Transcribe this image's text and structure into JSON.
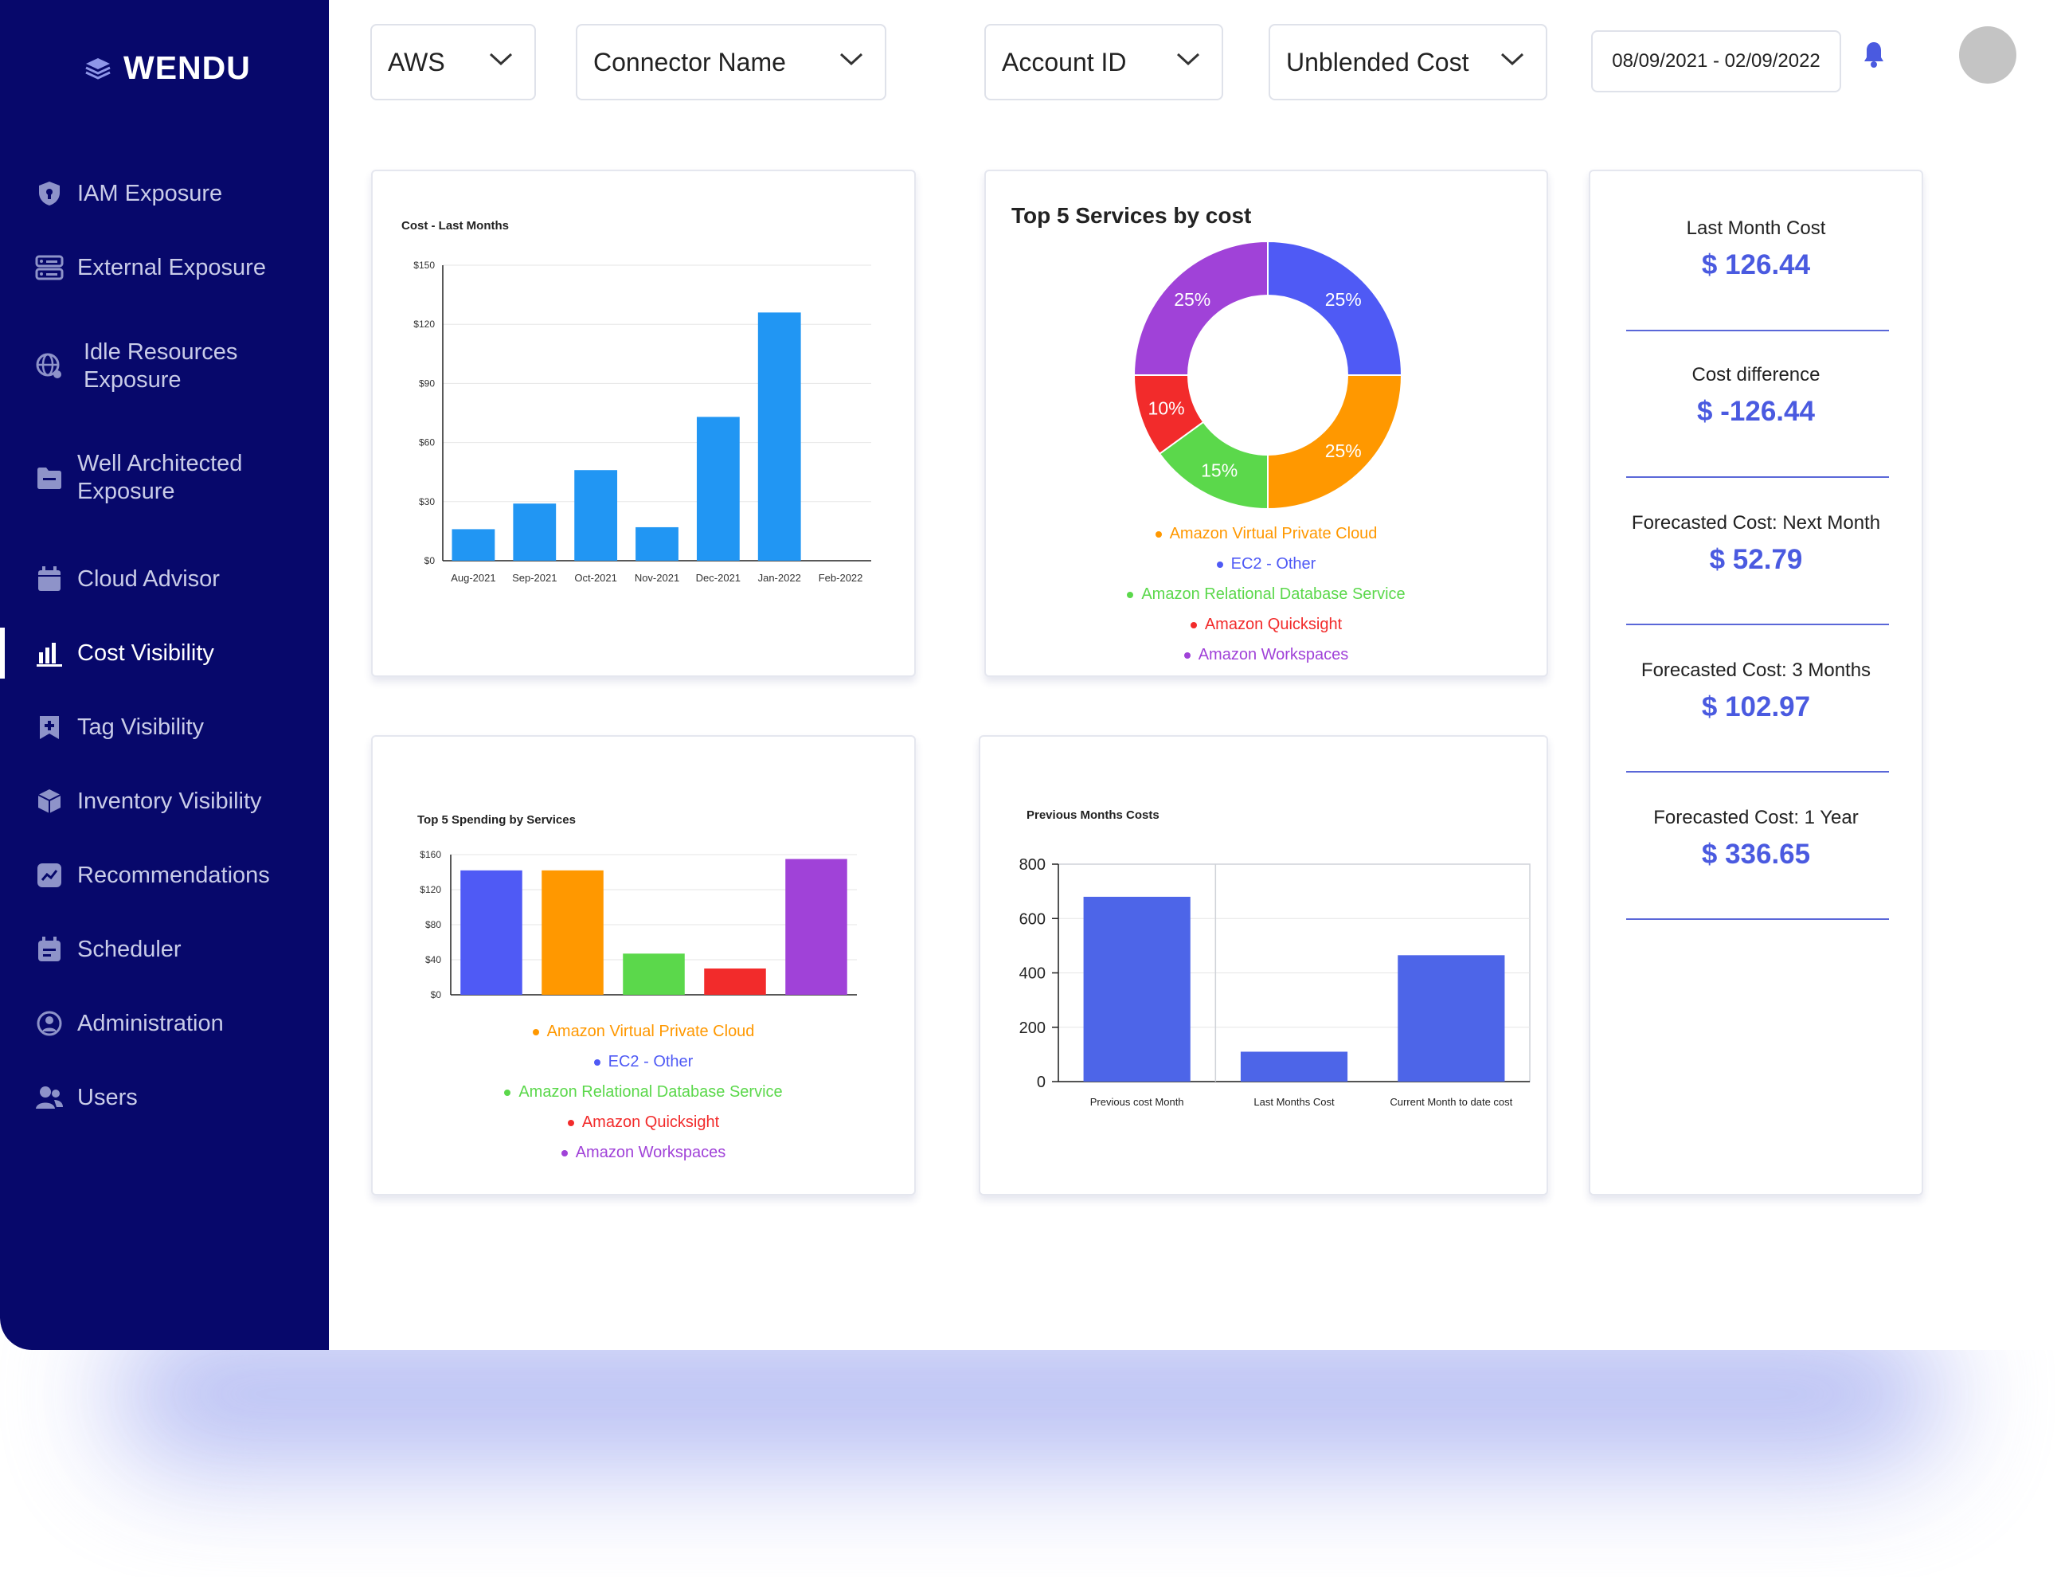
{
  "brand": {
    "name": "WENDU"
  },
  "sidebar": {
    "items": [
      {
        "label": "IAM Exposure",
        "icon": "shield-icon"
      },
      {
        "label": "External Exposure",
        "icon": "server-icon"
      },
      {
        "label": "Idle Resources Exposure",
        "icon": "globe-icon"
      },
      {
        "label": "Well Architected Exposure",
        "icon": "folder-icon"
      },
      {
        "label": "Cloud Advisor",
        "icon": "calendar-icon"
      },
      {
        "label": "Cost Visibility",
        "icon": "bar-chart-icon"
      },
      {
        "label": "Tag Visibility",
        "icon": "tag-icon"
      },
      {
        "label": "Inventory Visibility",
        "icon": "cube-icon"
      },
      {
        "label": "Recommendations",
        "icon": "trend-icon"
      },
      {
        "label": "Scheduler",
        "icon": "scheduler-icon"
      },
      {
        "label": "Administration",
        "icon": "user-circle-icon"
      },
      {
        "label": "Users",
        "icon": "users-icon"
      }
    ]
  },
  "filters": {
    "provider": "AWS",
    "connector": "Connector Name",
    "account": "Account ID",
    "cost_type": "Unblended Cost",
    "date_range": "08/09/2021 - 02/09/2022"
  },
  "colors": {
    "sidebar": "#07086b",
    "accent": "#4a5ae0",
    "blue_bar": "#2196f3",
    "vpc": "#ff9800",
    "ec2": "#4f5af5",
    "rds": "#5bd84b",
    "quicksight": "#f22b2b",
    "workspaces": "#a042d8"
  },
  "stats": [
    {
      "label": "Last Month Cost",
      "value": "$ 126.44"
    },
    {
      "label": "Cost difference",
      "value": "$ -126.44"
    },
    {
      "label": "Forecasted Cost: Next Month",
      "value": "$ 52.79"
    },
    {
      "label": "Forecasted Cost: 3 Months",
      "value": "$ 102.97"
    },
    {
      "label": "Forecasted Cost: 1 Year",
      "value": "$ 336.65"
    }
  ],
  "chart_data": [
    {
      "type": "bar",
      "title": "Cost - Last Months",
      "categories": [
        "Aug-2021",
        "Sep-2021",
        "Oct-2021",
        "Nov-2021",
        "Dec-2021",
        "Jan-2022",
        "Feb-2022"
      ],
      "values": [
        16,
        29,
        46,
        17,
        73,
        126,
        0
      ],
      "yticks": [
        "$0",
        "$30",
        "$60",
        "$90",
        "$120",
        "$150"
      ],
      "ylim": [
        0,
        150
      ],
      "grid": true
    },
    {
      "type": "pie",
      "title": "Top 5 Services by cost",
      "slices": [
        {
          "name": "Amazon Virtual Private Cloud",
          "value": 25,
          "label": "25%"
        },
        {
          "name": "EC2 - Other",
          "value": 25,
          "label": "25%"
        },
        {
          "name": "Amazon Relational Database Service",
          "value": 15,
          "label": "15%"
        },
        {
          "name": "Amazon Quicksight",
          "value": 10,
          "label": "10%"
        },
        {
          "name": "Amazon Workspaces",
          "value": 25,
          "label": "25%"
        }
      ]
    },
    {
      "type": "bar",
      "title": "Top 5 Spending by Services",
      "categories": [
        "Amazon Virtual Private Cloud",
        "EC2 - Other",
        "Amazon Relational Database Service",
        "Amazon Quicksight",
        "Amazon Workspaces"
      ],
      "values": [
        142,
        142,
        47,
        30,
        155
      ],
      "yticks": [
        "$0",
        "$40",
        "$80",
        "$120",
        "$160"
      ],
      "ylim": [
        0,
        160
      ],
      "legend": [
        "Amazon Virtual Private Cloud",
        "EC2 - Other",
        "Amazon Relational Database Service",
        "Amazon Quicksight",
        "Amazon Workspaces"
      ]
    },
    {
      "type": "bar",
      "title": "Previous Months Costs",
      "categories": [
        "Previous cost Month",
        "Last Months Cost",
        "Current Month to date cost"
      ],
      "values": [
        680,
        110,
        465
      ],
      "yticks": [
        "0",
        "200",
        "400",
        "600",
        "800"
      ],
      "ylim": [
        0,
        800
      ]
    }
  ]
}
